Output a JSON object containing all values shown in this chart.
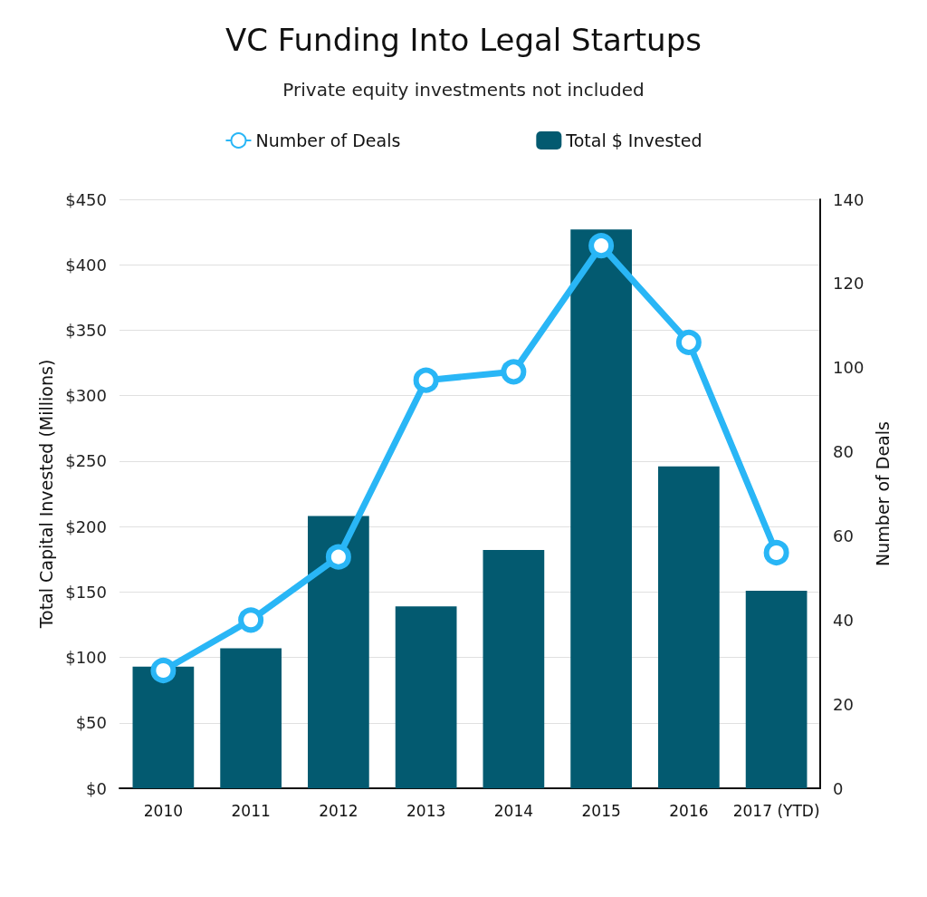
{
  "chart_data": {
    "type": "bar",
    "title": "VC Funding Into Legal Startups",
    "subtitle": "Private equity investments not included",
    "ylabel": "Total Capital Invested (Millions)",
    "y2label": "Number of Deals",
    "categories": [
      "2010",
      "2011",
      "2012",
      "2013",
      "2014",
      "2015",
      "2016",
      "2017 (YTD)"
    ],
    "series": [
      {
        "name": "Number of Deals",
        "type": "line",
        "axis": "y2",
        "color": "#29b6f6",
        "marker": "circle",
        "values": [
          28,
          40,
          55,
          97,
          99,
          129,
          106,
          56
        ]
      },
      {
        "name": "Total $ Invested",
        "color": "#035a70",
        "values": [
          93,
          107,
          208,
          139,
          182,
          427,
          246,
          151
        ]
      }
    ],
    "ylim": [
      0,
      450
    ],
    "yticks": [
      {
        "value": 0,
        "label": "$0"
      },
      {
        "value": 50,
        "label": "$50"
      },
      {
        "value": 100,
        "label": "$100"
      },
      {
        "value": 150,
        "label": "$150"
      },
      {
        "value": 200,
        "label": "$200"
      },
      {
        "value": 250,
        "label": "$250"
      },
      {
        "value": 300,
        "label": "$300"
      },
      {
        "value": 350,
        "label": "$350"
      },
      {
        "value": 400,
        "label": "$400"
      },
      {
        "value": 450,
        "label": "$450"
      }
    ],
    "y2lim": [
      0,
      140
    ],
    "y2ticks": [
      0,
      20,
      40,
      60,
      80,
      100,
      120,
      140
    ],
    "grid": "y",
    "legend": "top"
  }
}
